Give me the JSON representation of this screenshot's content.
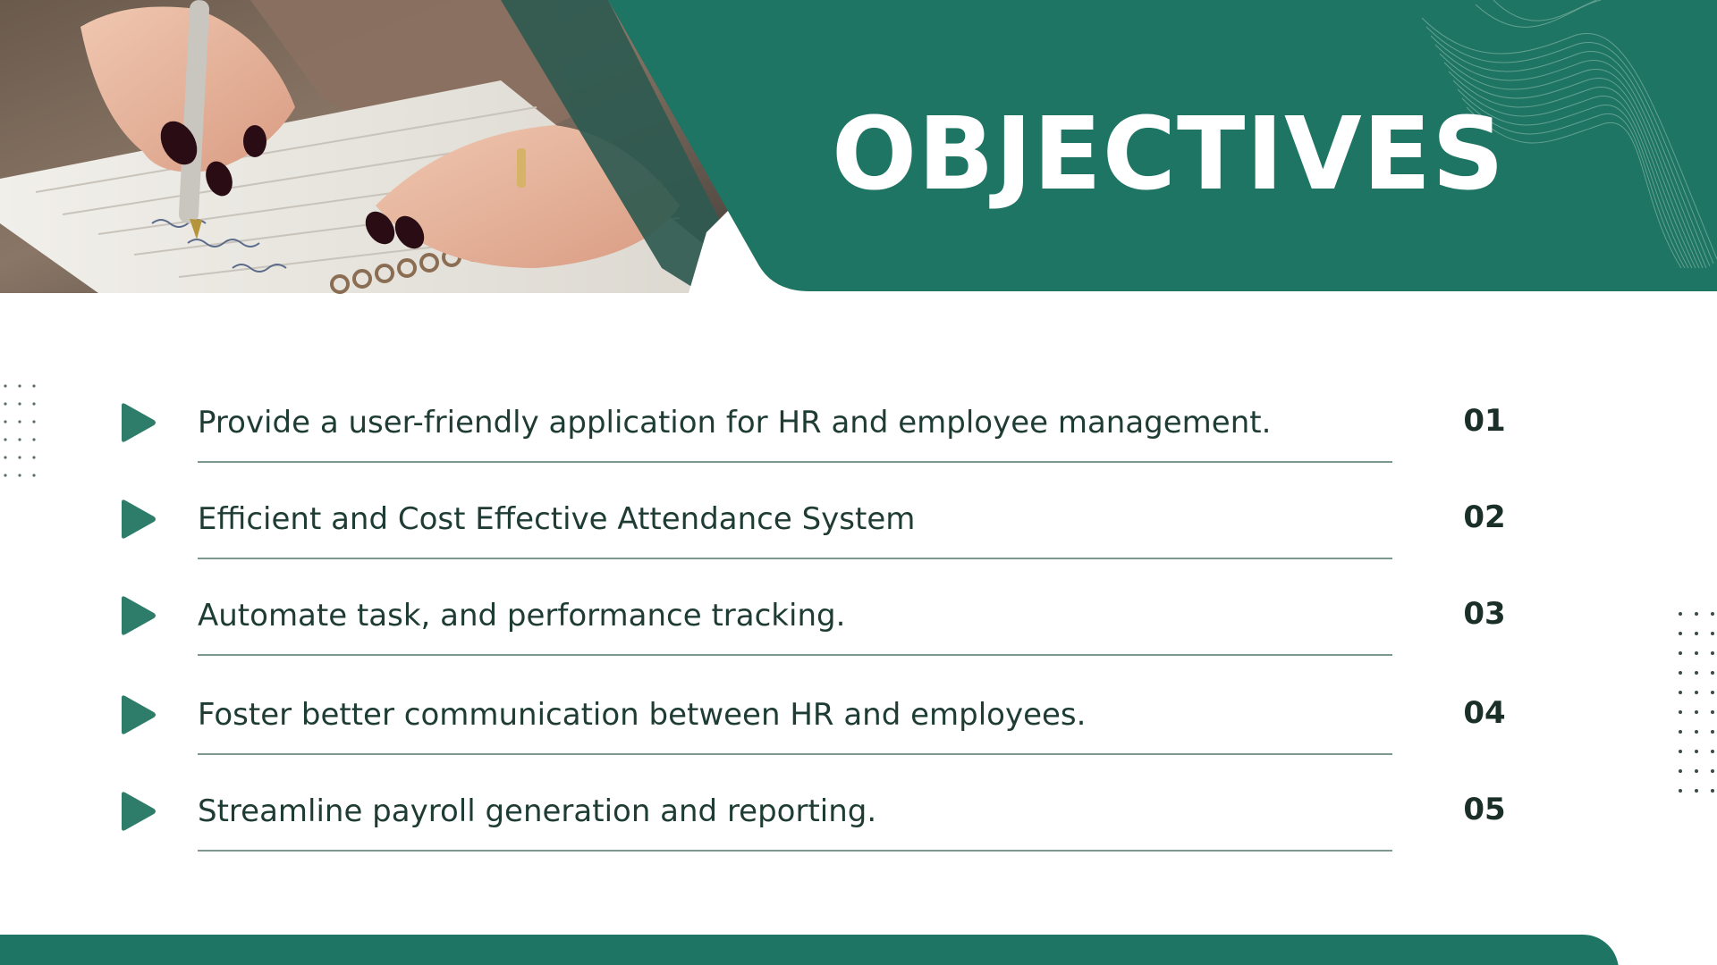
{
  "slide": {
    "title": "OBJECTIVES",
    "colors": {
      "primary": "#1f7563",
      "accent_dark": "#2f5a50",
      "text": "#1e3c34",
      "number": "#1a2f28",
      "divider": "#7c9890",
      "background": "#ffffff"
    },
    "photo": {
      "description_icon": "hand-writing-notebook-photo"
    },
    "objectives": [
      {
        "number": "01",
        "text": "Provide a user-friendly application for HR and employee management."
      },
      {
        "number": "02",
        "text": "Efficient and Cost Effective Attendance System"
      },
      {
        "number": "03",
        "text": "Automate task, and performance tracking."
      },
      {
        "number": "04",
        "text": "Foster better communication between HR and employees."
      },
      {
        "number": "05",
        "text": "Streamline payroll generation and reporting."
      }
    ],
    "bullet_icon": "play-triangle-icon"
  }
}
